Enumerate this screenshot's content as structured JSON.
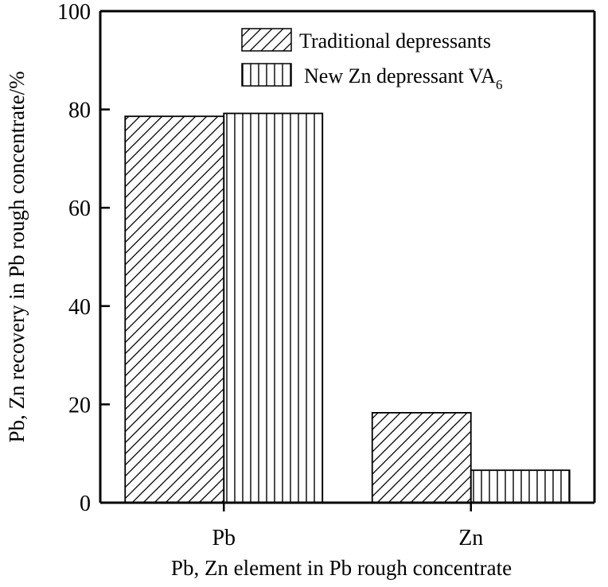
{
  "chart_data": {
    "type": "bar",
    "title": "",
    "xlabel": "Pb, Zn element in Pb rough concentrate",
    "ylabel": "Pb, Zn recovery in Pb rough concentrate/%",
    "ylim": [
      0,
      100
    ],
    "yticks": [
      "0",
      "20",
      "40",
      "60",
      "80",
      "100"
    ],
    "categories": [
      "Pb",
      "Zn"
    ],
    "series": [
      {
        "name": "Traditional depressants",
        "pattern": "diagonal-hatch",
        "values": [
          78.6,
          18.3
        ]
      },
      {
        "name": "New Zn depressant VA",
        "name_subscript": "6",
        "pattern": "vertical-hatch",
        "values": [
          79.2,
          6.6
        ]
      }
    ],
    "grid": false,
    "legend_position": "top-right",
    "colors": {
      "ink": "#000000",
      "background": "#ffffff"
    }
  }
}
